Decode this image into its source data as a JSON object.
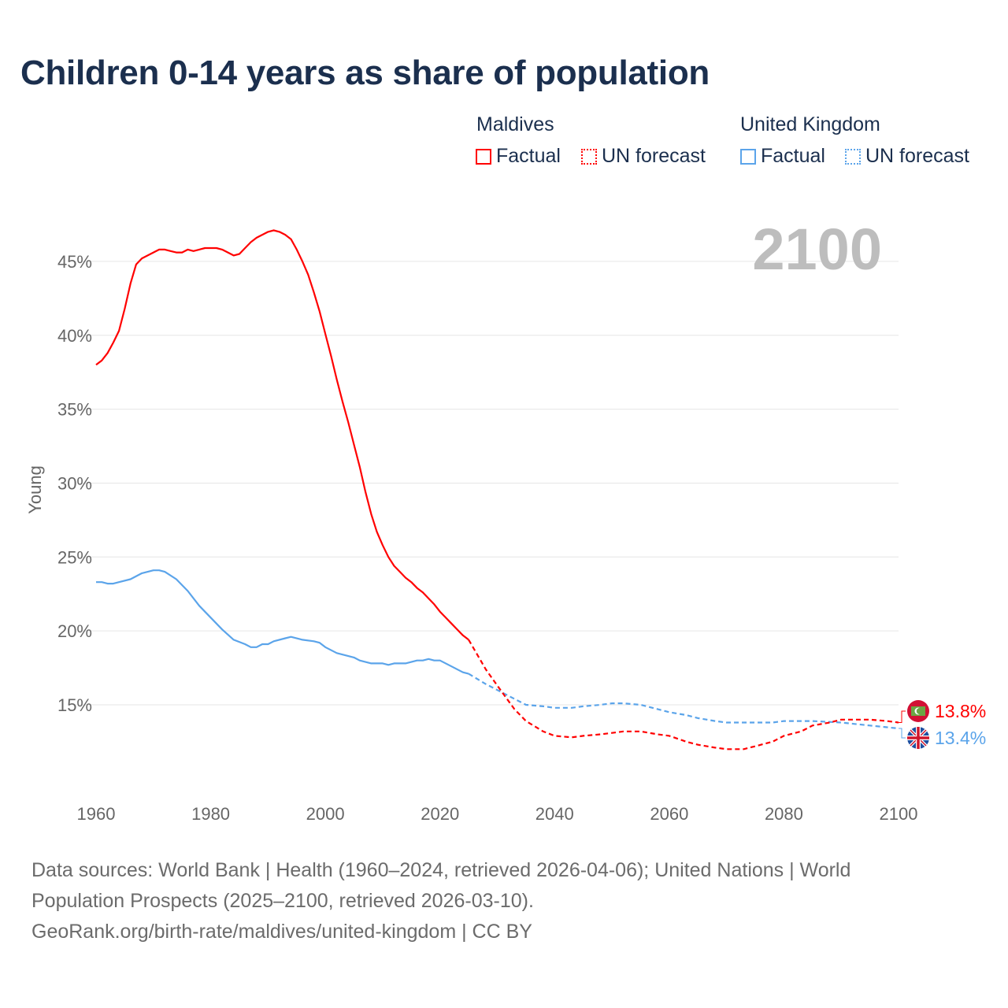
{
  "title": "Children 0-14 years as share of population",
  "legend": {
    "groups": [
      {
        "name": "Maldives",
        "factual": "Factual",
        "forecast": "UN forecast",
        "color": "#ff0000"
      },
      {
        "name": "United Kingdom",
        "factual": "Factual",
        "forecast": "UN forecast",
        "color": "#5ba4ea"
      }
    ]
  },
  "year_label": "2100",
  "footer": {
    "line1": "Data sources: World Bank | Health (1960–2024, retrieved 2026-04-06); United Nations | World",
    "line2": "Population Prospects (2025–2100, retrieved 2026-03-10).",
    "line3": "GeoRank.org/birth-rate/maldives/united-kingdom | CC BY"
  },
  "chart_data": {
    "type": "line",
    "title": "Children 0-14 years as share of population",
    "ylabel": "Young",
    "xlabel": "",
    "xlim": [
      1960,
      2100
    ],
    "ylim": [
      10,
      48
    ],
    "x_ticks": [
      "1960",
      "1980",
      "2000",
      "2020",
      "2040",
      "2060",
      "2080",
      "2100"
    ],
    "x_tick_values": [
      1960,
      1980,
      2000,
      2020,
      2040,
      2060,
      2080,
      2100
    ],
    "y_ticks": [
      "15%",
      "20%",
      "25%",
      "30%",
      "35%",
      "40%",
      "45%"
    ],
    "y_tick_values": [
      15,
      20,
      25,
      30,
      35,
      40,
      45
    ],
    "grid": true,
    "series": [
      {
        "name": "Maldives",
        "color": "#ff0000",
        "end_label": "13.8%",
        "factual": {
          "x": [
            1960,
            1961,
            1962,
            1963,
            1964,
            1965,
            1966,
            1967,
            1968,
            1969,
            1970,
            1971,
            1972,
            1973,
            1974,
            1975,
            1976,
            1977,
            1978,
            1979,
            1980,
            1981,
            1982,
            1983,
            1984,
            1985,
            1986,
            1987,
            1988,
            1989,
            1990,
            1991,
            1992,
            1993,
            1994,
            1995,
            1996,
            1997,
            1998,
            1999,
            2000,
            2001,
            2002,
            2003,
            2004,
            2005,
            2006,
            2007,
            2008,
            2009,
            2010,
            2011,
            2012,
            2013,
            2014,
            2015,
            2016,
            2017,
            2018,
            2019,
            2020,
            2021,
            2022,
            2023,
            2024,
            2025
          ],
          "y": [
            38.0,
            38.3,
            38.8,
            39.5,
            40.3,
            41.8,
            43.5,
            44.8,
            45.2,
            45.4,
            45.6,
            45.8,
            45.8,
            45.7,
            45.6,
            45.6,
            45.8,
            45.7,
            45.8,
            45.9,
            45.9,
            45.9,
            45.8,
            45.6,
            45.4,
            45.5,
            45.9,
            46.3,
            46.6,
            46.8,
            47.0,
            47.1,
            47.0,
            46.8,
            46.5,
            45.8,
            45.0,
            44.1,
            42.9,
            41.6,
            40.1,
            38.6,
            37.0,
            35.5,
            34.1,
            32.6,
            31.1,
            29.4,
            27.9,
            26.7,
            25.8,
            25.0,
            24.4,
            24.0,
            23.6,
            23.3,
            22.9,
            22.6,
            22.2,
            21.8,
            21.3,
            20.9,
            20.5,
            20.1,
            19.7,
            19.4
          ]
        },
        "forecast": {
          "x": [
            2025,
            2028,
            2030,
            2033,
            2035,
            2038,
            2040,
            2043,
            2045,
            2048,
            2050,
            2052,
            2055,
            2058,
            2060,
            2063,
            2065,
            2068,
            2070,
            2073,
            2075,
            2078,
            2080,
            2083,
            2085,
            2088,
            2090,
            2093,
            2095,
            2098,
            2100
          ],
          "y": [
            19.4,
            17.4,
            16.3,
            14.7,
            13.9,
            13.2,
            12.9,
            12.8,
            12.9,
            13.0,
            13.1,
            13.2,
            13.2,
            13.0,
            12.9,
            12.5,
            12.3,
            12.1,
            12.0,
            12.0,
            12.2,
            12.5,
            12.9,
            13.2,
            13.6,
            13.8,
            14.0,
            14.0,
            14.0,
            13.9,
            13.8
          ]
        }
      },
      {
        "name": "United Kingdom",
        "color": "#5ba4ea",
        "end_label": "13.4%",
        "factual": {
          "x": [
            1960,
            1961,
            1962,
            1963,
            1964,
            1966,
            1968,
            1970,
            1971,
            1972,
            1974,
            1976,
            1978,
            1980,
            1982,
            1984,
            1986,
            1987,
            1988,
            1989,
            1990,
            1991,
            1993,
            1994,
            1996,
            1998,
            1999,
            2000,
            2002,
            2004,
            2005,
            2006,
            2008,
            2010,
            2011,
            2012,
            2014,
            2016,
            2017,
            2018,
            2019,
            2020,
            2022,
            2024,
            2025
          ],
          "y": [
            23.3,
            23.3,
            23.2,
            23.2,
            23.3,
            23.5,
            23.9,
            24.1,
            24.1,
            24.0,
            23.5,
            22.7,
            21.7,
            20.9,
            20.1,
            19.4,
            19.1,
            18.9,
            18.9,
            19.1,
            19.1,
            19.3,
            19.5,
            19.6,
            19.4,
            19.3,
            19.2,
            18.9,
            18.5,
            18.3,
            18.2,
            18.0,
            17.8,
            17.8,
            17.7,
            17.8,
            17.8,
            18.0,
            18.0,
            18.1,
            18.0,
            18.0,
            17.6,
            17.2,
            17.1
          ]
        },
        "forecast": {
          "x": [
            2025,
            2028,
            2030,
            2033,
            2035,
            2038,
            2040,
            2043,
            2045,
            2048,
            2050,
            2052,
            2055,
            2058,
            2060,
            2063,
            2065,
            2068,
            2070,
            2075,
            2078,
            2080,
            2085,
            2090,
            2095,
            2100
          ],
          "y": [
            17.1,
            16.4,
            16.0,
            15.4,
            15.0,
            14.9,
            14.8,
            14.8,
            14.9,
            15.0,
            15.1,
            15.1,
            15.0,
            14.7,
            14.5,
            14.3,
            14.1,
            13.9,
            13.8,
            13.8,
            13.8,
            13.9,
            13.9,
            13.8,
            13.6,
            13.4
          ]
        }
      }
    ]
  }
}
